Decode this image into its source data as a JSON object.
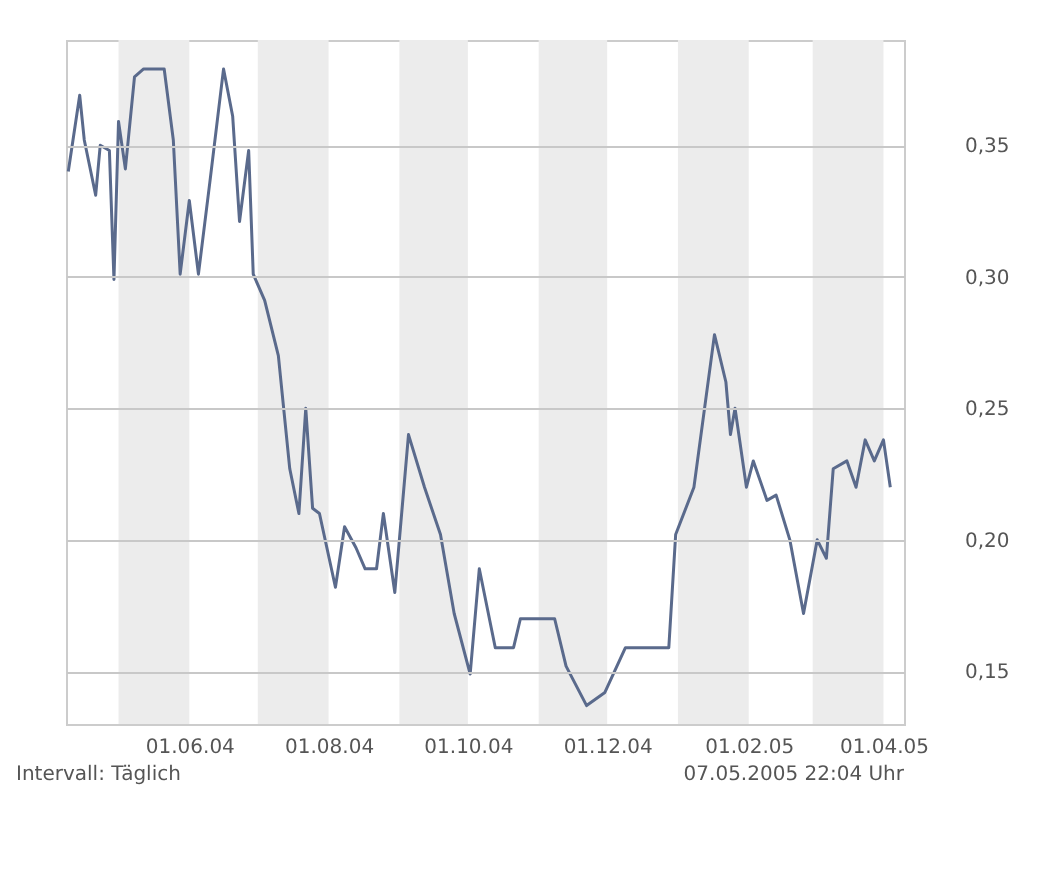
{
  "chart_data": {
    "type": "line",
    "x": [
      "2004-04-09",
      "2004-04-14",
      "2004-04-16",
      "2004-04-21",
      "2004-04-23",
      "2004-04-27",
      "2004-04-29",
      "2004-05-01",
      "2004-05-04",
      "2004-05-08",
      "2004-05-12",
      "2004-05-21",
      "2004-05-25",
      "2004-05-28",
      "2004-06-01",
      "2004-06-05",
      "2004-06-10",
      "2004-06-16",
      "2004-06-20",
      "2004-06-23",
      "2004-06-27",
      "2004-06-29",
      "2004-07-04",
      "2004-07-10",
      "2004-07-15",
      "2004-07-19",
      "2004-07-22",
      "2004-07-25",
      "2004-07-28",
      "2004-08-04",
      "2004-08-08",
      "2004-08-13",
      "2004-08-17",
      "2004-08-22",
      "2004-08-25",
      "2004-08-30",
      "2004-09-05",
      "2004-09-12",
      "2004-09-19",
      "2004-09-25",
      "2004-10-02",
      "2004-10-06",
      "2004-10-13",
      "2004-10-21",
      "2004-10-24",
      "2004-11-08",
      "2004-11-13",
      "2004-11-22",
      "2004-11-30",
      "2004-12-09",
      "2004-12-28",
      "2004-12-31",
      "2005-01-08",
      "2005-01-17",
      "2005-01-22",
      "2005-01-24",
      "2005-01-26",
      "2005-01-31",
      "2005-02-03",
      "2005-02-09",
      "2005-02-13",
      "2005-02-19",
      "2005-02-25",
      "2005-03-03",
      "2005-03-07",
      "2005-03-10",
      "2005-03-16",
      "2005-03-20",
      "2005-03-24",
      "2005-03-28",
      "2005-04-01",
      "2005-04-04"
    ],
    "series": [
      {
        "color": "#5a6a8c",
        "values": [
          0.34,
          0.369,
          0.352,
          0.331,
          0.35,
          0.348,
          0.299,
          0.359,
          0.341,
          0.376,
          0.379,
          0.379,
          0.352,
          0.301,
          0.329,
          0.301,
          0.336,
          0.379,
          0.361,
          0.321,
          0.348,
          0.301,
          0.291,
          0.27,
          0.227,
          0.21,
          0.25,
          0.212,
          0.21,
          0.182,
          0.205,
          0.197,
          0.189,
          0.189,
          0.21,
          0.18,
          0.24,
          0.22,
          0.202,
          0.172,
          0.149,
          0.189,
          0.159,
          0.159,
          0.17,
          0.17,
          0.152,
          0.137,
          0.142,
          0.159,
          0.159,
          0.202,
          0.22,
          0.278,
          0.26,
          0.24,
          0.25,
          0.22,
          0.23,
          0.215,
          0.217,
          0.2,
          0.172,
          0.2,
          0.193,
          0.227,
          0.23,
          0.22,
          0.238,
          0.23,
          0.238,
          0.22
        ]
      }
    ],
    "xlim": [
      "2004-04-08",
      "2005-04-10"
    ],
    "xticks": [
      {
        "value": "2004-06-01",
        "label": "01.06.04"
      },
      {
        "value": "2004-08-01",
        "label": "01.08.04"
      },
      {
        "value": "2004-10-01",
        "label": "01.10.04"
      },
      {
        "value": "2004-12-01",
        "label": "01.12.04"
      },
      {
        "value": "2005-02-01",
        "label": "01.02.05"
      },
      {
        "value": "2005-04-01",
        "label": "01.04.05"
      }
    ],
    "ylim": [
      0.13,
      0.39
    ],
    "yticks": [
      {
        "value": 0.15,
        "label": "0,15"
      },
      {
        "value": 0.2,
        "label": "0,20"
      },
      {
        "value": 0.25,
        "label": "0,25"
      },
      {
        "value": 0.3,
        "label": "0,30"
      },
      {
        "value": 0.35,
        "label": "0,35"
      }
    ],
    "bands": [
      {
        "axis": "x",
        "from": "2004-05-01",
        "to": "2004-06-01",
        "color": "#ececec"
      },
      {
        "axis": "x",
        "from": "2004-07-01",
        "to": "2004-08-01",
        "color": "#ececec"
      },
      {
        "axis": "x",
        "from": "2004-09-01",
        "to": "2004-10-01",
        "color": "#ececec"
      },
      {
        "axis": "x",
        "from": "2004-11-01",
        "to": "2004-12-01",
        "color": "#ececec"
      },
      {
        "axis": "x",
        "from": "2005-01-01",
        "to": "2005-02-01",
        "color": "#ececec"
      },
      {
        "axis": "x",
        "from": "2005-03-01",
        "to": "2005-04-01",
        "color": "#ececec"
      }
    ],
    "grid": "y",
    "line_style": "solid",
    "marker": "none",
    "annotations": [
      "Intervall: Täglich",
      "07.05.2005   22:04 Uhr"
    ]
  }
}
